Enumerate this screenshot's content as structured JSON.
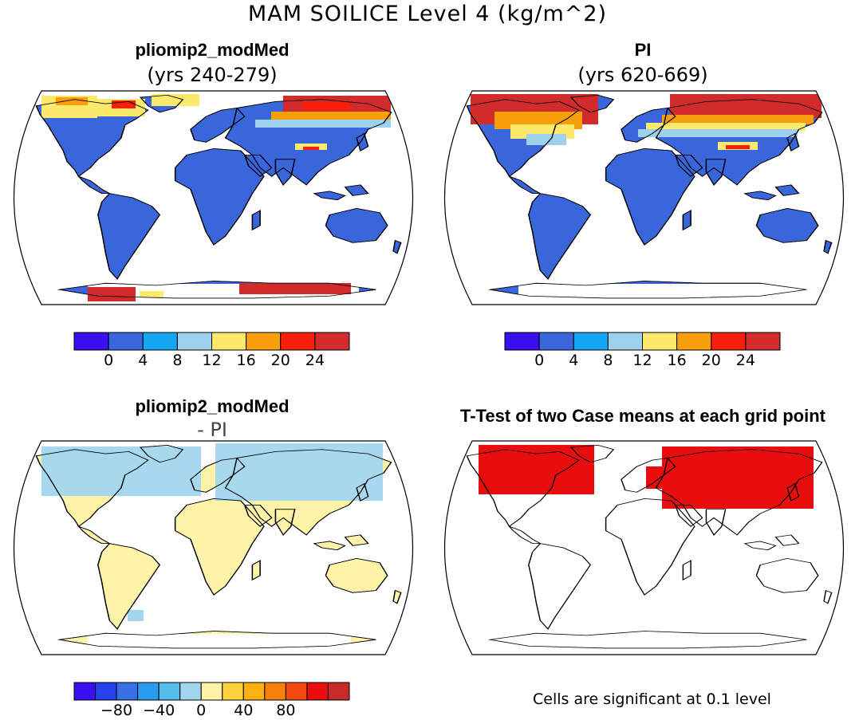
{
  "figure": {
    "title": "MAM SOILICE Level 4 (kg/m^2)"
  },
  "panels": {
    "top_left": {
      "title": "pliomip2_modMed",
      "subtitle": "(yrs 240-279)"
    },
    "top_right": {
      "title": "PI",
      "subtitle": "(yrs 620-669)"
    },
    "bottom_left": {
      "title": "pliomip2_modMed",
      "subtitle": "- PI"
    },
    "bottom_right": {
      "title": "T-Test of two Case means at each grid point",
      "note": "Cells are significant at 0.1 level"
    }
  },
  "colorbars": {
    "absolute": {
      "colors": [
        "#3a10f0",
        "#3a66dc",
        "#14a6f2",
        "#9ed2ec",
        "#fde96c",
        "#f99f0c",
        "#f61f0c",
        "#d22b2b"
      ],
      "labels": [
        "0",
        "4",
        "8",
        "12",
        "16",
        "20",
        "24"
      ]
    },
    "difference": {
      "colors": [
        "#3a10f0",
        "#2642ea",
        "#3670e6",
        "#2a9cf0",
        "#56bce8",
        "#a2d6ee",
        "#fef3a8",
        "#fed23c",
        "#fcb012",
        "#f9800a",
        "#f44a12",
        "#e80e0e",
        "#c82a2a"
      ],
      "labels": [
        "-80",
        "-40",
        "0",
        "40",
        "80"
      ]
    },
    "significance_color": "#e80e0e"
  },
  "chart_data": [
    {
      "type": "map",
      "panel": "pliomip2_modMed (yrs 240-279)",
      "variable": "SOILICE Level 4",
      "units": "kg/m^2",
      "season": "MAM",
      "contour_levels": [
        0,
        4,
        8,
        12,
        16,
        20,
        24
      ]
    },
    {
      "type": "map",
      "panel": "PI (yrs 620-669)",
      "variable": "SOILICE Level 4",
      "units": "kg/m^2",
      "season": "MAM",
      "contour_levels": [
        0,
        4,
        8,
        12,
        16,
        20,
        24
      ]
    },
    {
      "type": "map",
      "panel": "pliomip2_modMed - PI",
      "variable": "SOILICE Level 4 difference",
      "units": "kg/m^2",
      "contour_labels": [
        -80,
        -40,
        0,
        40,
        80
      ]
    },
    {
      "type": "map",
      "panel": "T-Test of two Case means at each grid point",
      "significance_level": 0.1
    }
  ]
}
